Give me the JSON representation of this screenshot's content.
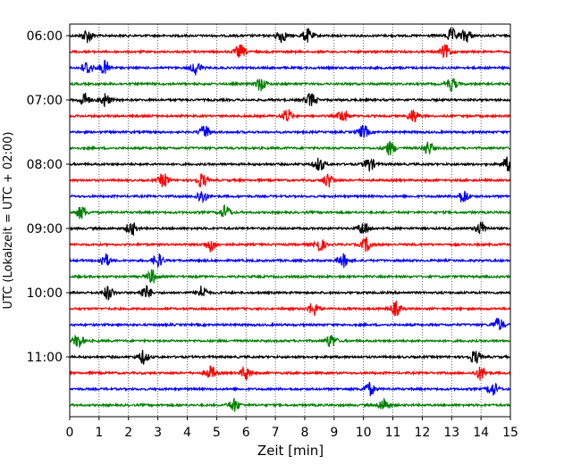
{
  "chart_data": {
    "type": "line",
    "title": "",
    "xlabel": "Zeit  [min]",
    "ylabel": "UTC (Lokalzeit = UTC + 02:00)",
    "xlim": [
      0,
      15
    ],
    "x_ticks": [
      "0",
      "1",
      "2",
      "3",
      "4",
      "5",
      "6",
      "7",
      "8",
      "9",
      "10",
      "11",
      "12",
      "13",
      "14",
      "15"
    ],
    "y_ticks": [
      {
        "label": "06:00",
        "trace_index": 0
      },
      {
        "label": "07:00",
        "trace_index": 4
      },
      {
        "label": "08:00",
        "trace_index": 8
      },
      {
        "label": "09:00",
        "trace_index": 12
      },
      {
        "label": "10:00",
        "trace_index": 16
      },
      {
        "label": "11:00",
        "trace_index": 20
      }
    ],
    "grid": "vertical dotted lines at each minute",
    "color_cycle": [
      "#000000",
      "#ff0000",
      "#0000ff",
      "#008000"
    ],
    "trace_start_times": [
      "06:00",
      "06:15",
      "06:30",
      "06:45",
      "07:00",
      "07:15",
      "07:30",
      "07:45",
      "08:00",
      "08:15",
      "08:30",
      "08:45",
      "09:00",
      "09:15",
      "09:30",
      "09:45",
      "10:00",
      "10:15",
      "10:30",
      "10:45",
      "11:00",
      "11:15",
      "11:30",
      "11:45"
    ],
    "events_minutes": [
      [
        0.6,
        7.2,
        8.1,
        13.0,
        13.5
      ],
      [
        5.8,
        12.8
      ],
      [
        0.6,
        1.2,
        4.3
      ],
      [
        13.0,
        6.5
      ],
      [
        1.2,
        8.2,
        0.5
      ],
      [
        7.4,
        9.3,
        11.7
      ],
      [
        4.6,
        10.0
      ],
      [
        10.9,
        12.2
      ],
      [
        8.5,
        10.2,
        14.9
      ],
      [
        3.2,
        4.5,
        8.8
      ],
      [
        4.5,
        13.4
      ],
      [
        0.4,
        5.3
      ],
      [
        2.1,
        10.0,
        14.0
      ],
      [
        4.8,
        8.5,
        10.1
      ],
      [
        1.2,
        3.0,
        9.3
      ],
      [
        2.8
      ],
      [
        1.3,
        2.6,
        4.5
      ],
      [
        8.3,
        11.1
      ],
      [
        14.6
      ],
      [
        8.9,
        0.3
      ],
      [
        2.5,
        13.8
      ],
      [
        4.8,
        6.0,
        14.0
      ],
      [
        10.2,
        14.4
      ],
      [
        5.6,
        10.7
      ]
    ]
  }
}
